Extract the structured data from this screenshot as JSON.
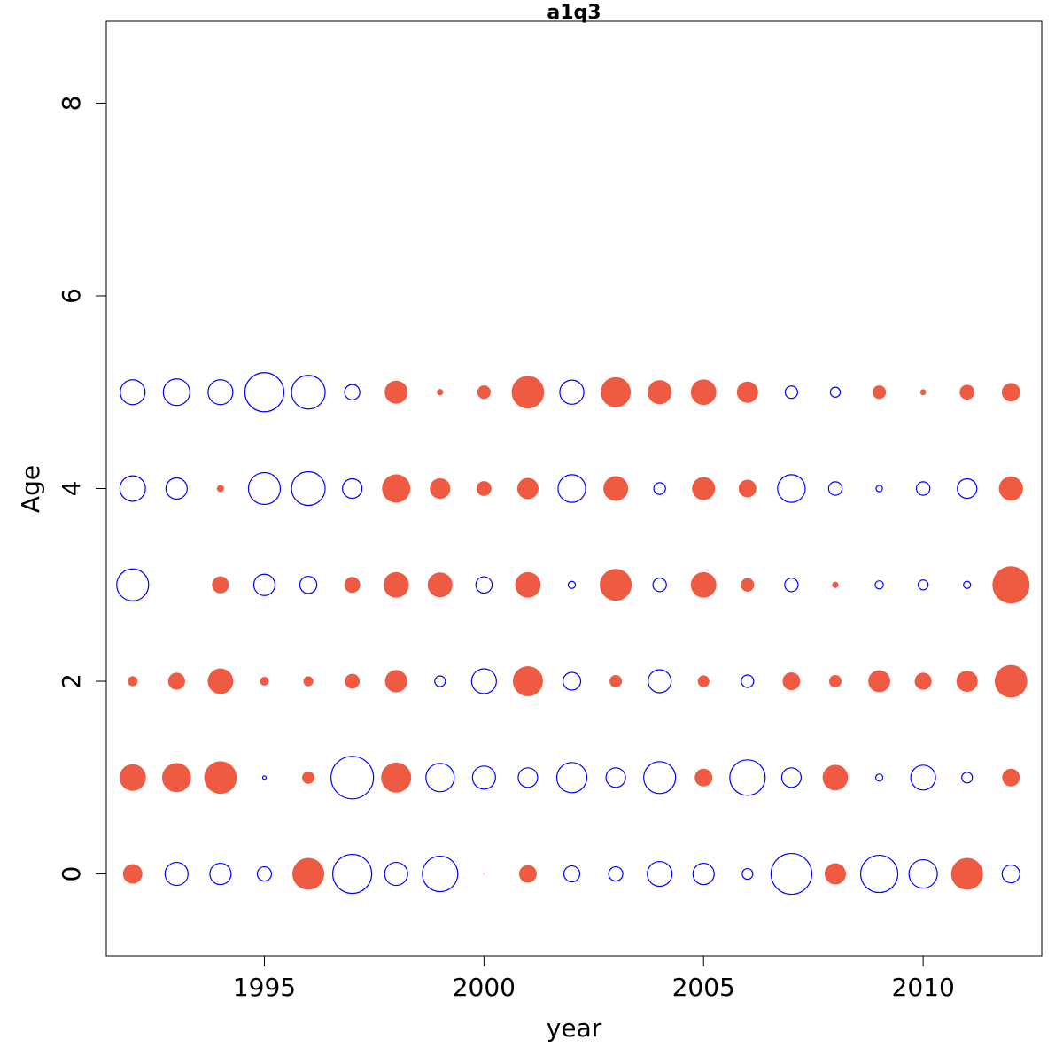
{
  "chart_data": {
    "type": "scatter",
    "subtype": "bubble",
    "title": "a1q3",
    "xlabel": "year",
    "ylabel": "Age",
    "xlim": [
      1991.4,
      2012.7
    ],
    "ylim": [
      -0.85,
      8.85
    ],
    "x_ticks": [
      1995,
      2000,
      2005,
      2010
    ],
    "y_ticks": [
      0,
      2,
      4,
      6,
      8
    ],
    "grid": false,
    "legend": "none",
    "colors": {
      "positive": "#EF5B42",
      "negative": "#0000FF"
    },
    "encoding_note": "filled = positive residual, open = negative residual; value = bubble size",
    "points": [
      {
        "year": 1992,
        "age": 0,
        "value": 0.55
      },
      {
        "year": 1993,
        "age": 0,
        "value": -0.65
      },
      {
        "year": 1994,
        "age": 0,
        "value": -0.6
      },
      {
        "year": 1995,
        "age": 0,
        "value": -0.4
      },
      {
        "year": 1996,
        "age": 0,
        "value": 0.9
      },
      {
        "year": 1997,
        "age": 0,
        "value": -1.1
      },
      {
        "year": 1998,
        "age": 0,
        "value": -0.65
      },
      {
        "year": 1999,
        "age": 0,
        "value": -1.0
      },
      {
        "year": 2000,
        "age": 0,
        "value": 0.03
      },
      {
        "year": 2001,
        "age": 0,
        "value": 0.5
      },
      {
        "year": 2002,
        "age": 0,
        "value": -0.45
      },
      {
        "year": 2003,
        "age": 0,
        "value": -0.4
      },
      {
        "year": 2004,
        "age": 0,
        "value": -0.7
      },
      {
        "year": 2005,
        "age": 0,
        "value": -0.6
      },
      {
        "year": 2006,
        "age": 0,
        "value": -0.3
      },
      {
        "year": 2007,
        "age": 0,
        "value": -1.15
      },
      {
        "year": 2008,
        "age": 0,
        "value": 0.6
      },
      {
        "year": 2009,
        "age": 0,
        "value": -1.05
      },
      {
        "year": 2010,
        "age": 0,
        "value": -0.8
      },
      {
        "year": 2011,
        "age": 0,
        "value": 0.9
      },
      {
        "year": 2012,
        "age": 0,
        "value": -0.5
      },
      {
        "year": 1992,
        "age": 1,
        "value": 0.75
      },
      {
        "year": 1993,
        "age": 1,
        "value": 0.82
      },
      {
        "year": 1994,
        "age": 1,
        "value": 0.92
      },
      {
        "year": 1995,
        "age": 1,
        "value": -0.1
      },
      {
        "year": 1996,
        "age": 1,
        "value": 0.35
      },
      {
        "year": 1997,
        "age": 1,
        "value": -1.2
      },
      {
        "year": 1998,
        "age": 1,
        "value": 0.85
      },
      {
        "year": 1999,
        "age": 1,
        "value": -0.8
      },
      {
        "year": 2000,
        "age": 1,
        "value": -0.65
      },
      {
        "year": 2001,
        "age": 1,
        "value": -0.55
      },
      {
        "year": 2002,
        "age": 1,
        "value": -0.85
      },
      {
        "year": 2003,
        "age": 1,
        "value": -0.55
      },
      {
        "year": 2004,
        "age": 1,
        "value": -0.9
      },
      {
        "year": 2005,
        "age": 1,
        "value": 0.5
      },
      {
        "year": 2006,
        "age": 1,
        "value": -1.0
      },
      {
        "year": 2007,
        "age": 1,
        "value": -0.55
      },
      {
        "year": 2008,
        "age": 1,
        "value": 0.72
      },
      {
        "year": 2009,
        "age": 1,
        "value": -0.2
      },
      {
        "year": 2010,
        "age": 1,
        "value": -0.7
      },
      {
        "year": 2011,
        "age": 1,
        "value": -0.3
      },
      {
        "year": 2012,
        "age": 1,
        "value": 0.5
      },
      {
        "year": 1992,
        "age": 2,
        "value": 0.28
      },
      {
        "year": 1993,
        "age": 2,
        "value": 0.48
      },
      {
        "year": 1994,
        "age": 2,
        "value": 0.72
      },
      {
        "year": 1995,
        "age": 2,
        "value": 0.25
      },
      {
        "year": 1996,
        "age": 2,
        "value": 0.28
      },
      {
        "year": 1997,
        "age": 2,
        "value": 0.42
      },
      {
        "year": 1998,
        "age": 2,
        "value": 0.63
      },
      {
        "year": 1999,
        "age": 2,
        "value": -0.3
      },
      {
        "year": 2000,
        "age": 2,
        "value": -0.7
      },
      {
        "year": 2001,
        "age": 2,
        "value": 0.85
      },
      {
        "year": 2002,
        "age": 2,
        "value": -0.5
      },
      {
        "year": 2003,
        "age": 2,
        "value": 0.35
      },
      {
        "year": 2004,
        "age": 2,
        "value": -0.65
      },
      {
        "year": 2005,
        "age": 2,
        "value": 0.33
      },
      {
        "year": 2006,
        "age": 2,
        "value": -0.35
      },
      {
        "year": 2007,
        "age": 2,
        "value": 0.5
      },
      {
        "year": 2008,
        "age": 2,
        "value": 0.35
      },
      {
        "year": 2009,
        "age": 2,
        "value": 0.62
      },
      {
        "year": 2010,
        "age": 2,
        "value": 0.48
      },
      {
        "year": 2011,
        "age": 2,
        "value": 0.6
      },
      {
        "year": 2012,
        "age": 2,
        "value": 0.92
      },
      {
        "year": 1992,
        "age": 3,
        "value": -0.9
      },
      {
        "year": 1994,
        "age": 3,
        "value": 0.48
      },
      {
        "year": 1995,
        "age": 3,
        "value": -0.6
      },
      {
        "year": 1996,
        "age": 3,
        "value": -0.48
      },
      {
        "year": 1997,
        "age": 3,
        "value": 0.45
      },
      {
        "year": 1998,
        "age": 3,
        "value": 0.72
      },
      {
        "year": 1999,
        "age": 3,
        "value": 0.7
      },
      {
        "year": 2000,
        "age": 3,
        "value": -0.46
      },
      {
        "year": 2001,
        "age": 3,
        "value": 0.72
      },
      {
        "year": 2002,
        "age": 3,
        "value": -0.2
      },
      {
        "year": 2003,
        "age": 3,
        "value": 0.9
      },
      {
        "year": 2004,
        "age": 3,
        "value": -0.38
      },
      {
        "year": 2005,
        "age": 3,
        "value": 0.72
      },
      {
        "year": 2006,
        "age": 3,
        "value": 0.38
      },
      {
        "year": 2007,
        "age": 3,
        "value": -0.38
      },
      {
        "year": 2008,
        "age": 3,
        "value": 0.18
      },
      {
        "year": 2009,
        "age": 3,
        "value": -0.23
      },
      {
        "year": 2010,
        "age": 3,
        "value": -0.28
      },
      {
        "year": 2011,
        "age": 3,
        "value": -0.2
      },
      {
        "year": 2012,
        "age": 3,
        "value": 1.05
      },
      {
        "year": 1992,
        "age": 4,
        "value": -0.72
      },
      {
        "year": 1993,
        "age": 4,
        "value": -0.6
      },
      {
        "year": 1994,
        "age": 4,
        "value": 0.2
      },
      {
        "year": 1995,
        "age": 4,
        "value": -0.9
      },
      {
        "year": 1996,
        "age": 4,
        "value": -0.95
      },
      {
        "year": 1997,
        "age": 4,
        "value": -0.55
      },
      {
        "year": 1998,
        "age": 4,
        "value": 0.8
      },
      {
        "year": 1999,
        "age": 4,
        "value": 0.58
      },
      {
        "year": 2000,
        "age": 4,
        "value": 0.42
      },
      {
        "year": 2001,
        "age": 4,
        "value": 0.6
      },
      {
        "year": 2002,
        "age": 4,
        "value": -0.78
      },
      {
        "year": 2003,
        "age": 4,
        "value": 0.7
      },
      {
        "year": 2004,
        "age": 4,
        "value": -0.33
      },
      {
        "year": 2005,
        "age": 4,
        "value": 0.65
      },
      {
        "year": 2006,
        "age": 4,
        "value": 0.5
      },
      {
        "year": 2007,
        "age": 4,
        "value": -0.78
      },
      {
        "year": 2008,
        "age": 4,
        "value": -0.38
      },
      {
        "year": 2009,
        "age": 4,
        "value": -0.18
      },
      {
        "year": 2010,
        "age": 4,
        "value": -0.38
      },
      {
        "year": 2011,
        "age": 4,
        "value": -0.55
      },
      {
        "year": 2012,
        "age": 4,
        "value": 0.68
      },
      {
        "year": 1992,
        "age": 5,
        "value": -0.7
      },
      {
        "year": 1993,
        "age": 5,
        "value": -0.75
      },
      {
        "year": 1994,
        "age": 5,
        "value": -0.7
      },
      {
        "year": 1995,
        "age": 5,
        "value": -1.1
      },
      {
        "year": 1996,
        "age": 5,
        "value": -0.95
      },
      {
        "year": 1997,
        "age": 5,
        "value": -0.43
      },
      {
        "year": 1998,
        "age": 5,
        "value": 0.65
      },
      {
        "year": 1999,
        "age": 5,
        "value": 0.18
      },
      {
        "year": 2000,
        "age": 5,
        "value": 0.38
      },
      {
        "year": 2001,
        "age": 5,
        "value": 0.92
      },
      {
        "year": 2002,
        "age": 5,
        "value": -0.68
      },
      {
        "year": 2003,
        "age": 5,
        "value": 0.85
      },
      {
        "year": 2004,
        "age": 5,
        "value": 0.68
      },
      {
        "year": 2005,
        "age": 5,
        "value": 0.72
      },
      {
        "year": 2006,
        "age": 5,
        "value": 0.6
      },
      {
        "year": 2007,
        "age": 5,
        "value": -0.35
      },
      {
        "year": 2008,
        "age": 5,
        "value": -0.28
      },
      {
        "year": 2009,
        "age": 5,
        "value": 0.38
      },
      {
        "year": 2010,
        "age": 5,
        "value": 0.17
      },
      {
        "year": 2011,
        "age": 5,
        "value": 0.42
      },
      {
        "year": 2012,
        "age": 5,
        "value": 0.52
      }
    ]
  }
}
